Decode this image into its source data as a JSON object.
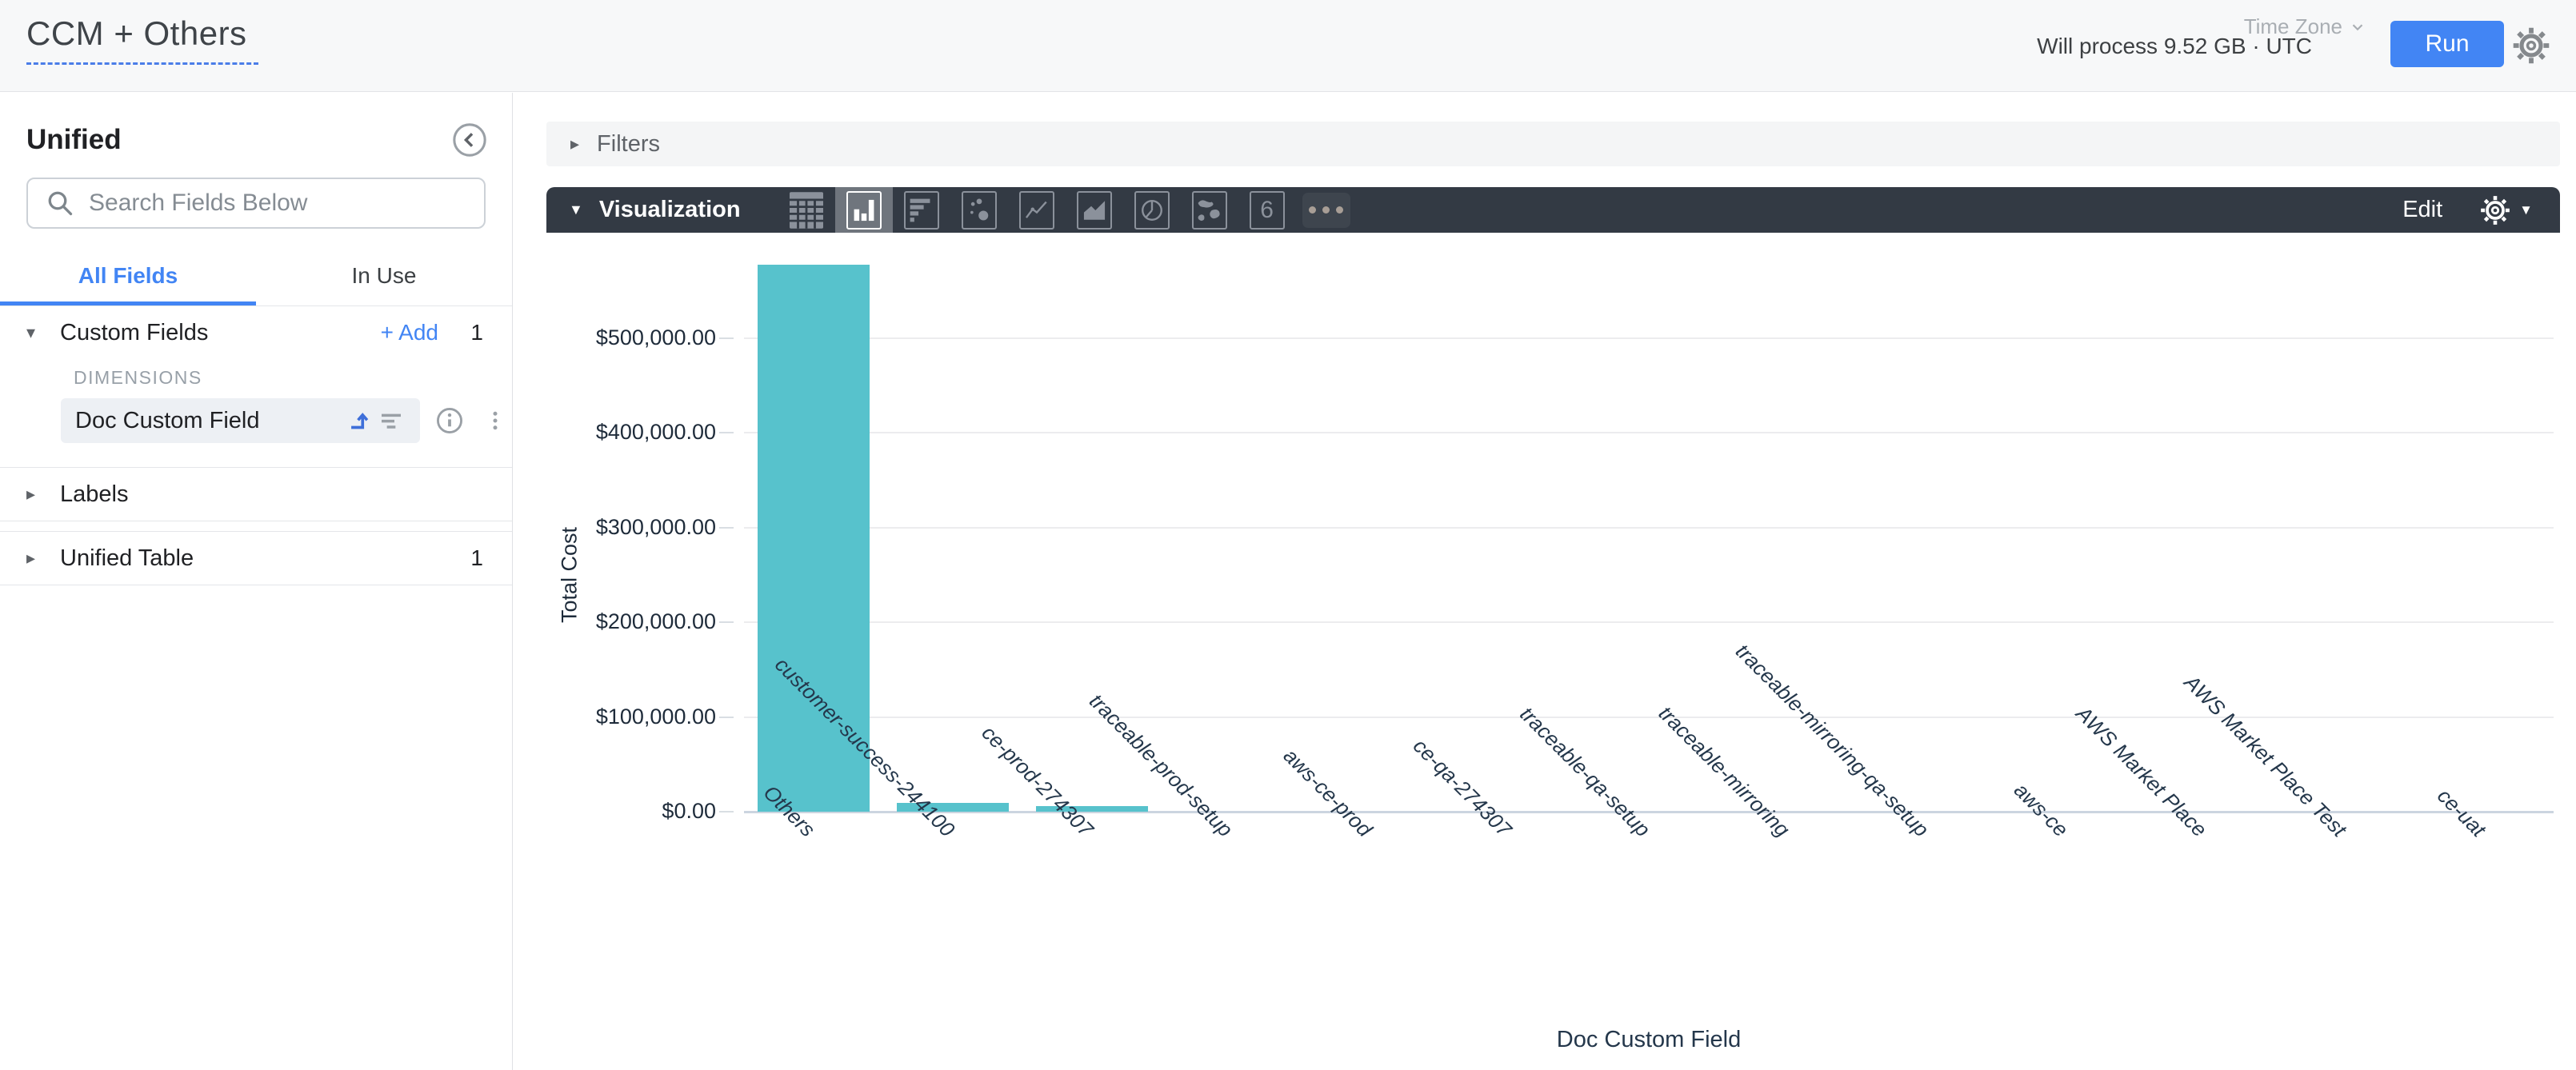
{
  "header": {
    "title": "CCM + Others",
    "process_info": "Will process 9.52 GB · UTC",
    "time_zone_label": "Time Zone",
    "run_label": "Run"
  },
  "sidebar": {
    "view_name": "Unified",
    "search_placeholder": "Search Fields Below",
    "tabs": [
      {
        "label": "All Fields",
        "active": true
      },
      {
        "label": "In Use",
        "active": false
      }
    ],
    "sections": [
      {
        "label": "Custom Fields",
        "expanded": true,
        "count": "1",
        "add_label": "+ Add",
        "group_label": "DIMENSIONS",
        "fields": [
          {
            "label": "Doc Custom Field"
          }
        ]
      },
      {
        "label": "Labels",
        "expanded": false,
        "count": ""
      },
      {
        "label": "Unified Table",
        "expanded": false,
        "count": "1"
      }
    ]
  },
  "filters": {
    "label": "Filters"
  },
  "visualization": {
    "label": "Visualization",
    "edit_label": "Edit",
    "single_value_glyph": "6",
    "chart_types": [
      "table",
      "column",
      "bar",
      "scatter",
      "line",
      "area",
      "pie",
      "map",
      "single-value",
      "more"
    ]
  },
  "chart_data": {
    "type": "bar",
    "title": "",
    "xlabel": "Doc Custom Field",
    "ylabel": "Total Cost",
    "ylim": [
      0,
      500000
    ],
    "grid": true,
    "legend": "none",
    "bar_color": "#57C2CC",
    "y_ticks": [
      {
        "value": 500000,
        "label": "$500,000.00"
      },
      {
        "value": 400000,
        "label": "$400,000.00"
      },
      {
        "value": 300000,
        "label": "$300,000.00"
      },
      {
        "value": 200000,
        "label": "$200,000.00"
      },
      {
        "value": 100000,
        "label": "$100,000.00"
      },
      {
        "value": 0,
        "label": "$0.00"
      }
    ],
    "categories": [
      "Others",
      "customer-success-244100",
      "ce-prod-274307",
      "traceable-prod-setup",
      "aws-ce-prod",
      "ce-qa-274307",
      "traceable-qa-setup",
      "traceable-mirroring",
      "traceable-mirroring-qa-setup",
      "aws-ce",
      "AWS Market Place",
      "AWS Market Place Test",
      "ce-uat"
    ],
    "values": [
      578000,
      9300,
      6200,
      0,
      0,
      0,
      0,
      0,
      0,
      0,
      0,
      0,
      0
    ]
  },
  "colors": {
    "accent_blue": "#4285F4",
    "bar_teal": "#57C2CC",
    "toolbar_dark": "#333A44",
    "axis_text": "#24374B"
  }
}
